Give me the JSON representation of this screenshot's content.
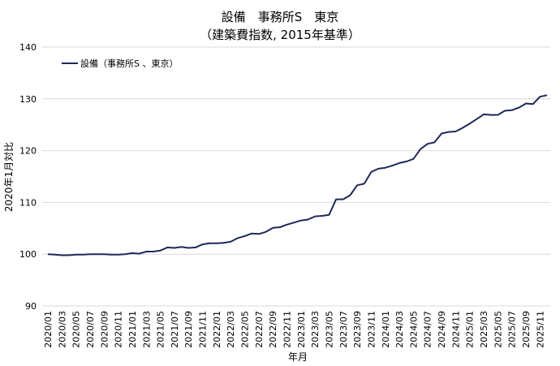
{
  "chart_data": {
    "type": "line",
    "title": "設備　事務所S　東京",
    "subtitle": "（建築費指数, 2015年基準）",
    "xlabel": "年月",
    "ylabel": "2020年1月対比",
    "ylim": [
      90,
      140
    ],
    "yticks": [
      90,
      100,
      110,
      120,
      130,
      140
    ],
    "grid": true,
    "legend_position": "top-left",
    "line_color": "#1f2858",
    "series": [
      {
        "name": "設備（事務所S 、東京）",
        "x": [
          "2020/01",
          "2020/02",
          "2020/03",
          "2020/04",
          "2020/05",
          "2020/06",
          "2020/07",
          "2020/08",
          "2020/09",
          "2020/10",
          "2020/11",
          "2020/12",
          "2021/01",
          "2021/02",
          "2021/03",
          "2021/04",
          "2021/05",
          "2021/06",
          "2021/07",
          "2021/08",
          "2021/09",
          "2021/10",
          "2021/11",
          "2021/12",
          "2022/01",
          "2022/02",
          "2022/03",
          "2022/04",
          "2022/05",
          "2022/06",
          "2022/07",
          "2022/08",
          "2022/09",
          "2022/10",
          "2022/11",
          "2022/12",
          "2023/01",
          "2023/02",
          "2023/03",
          "2023/04",
          "2023/05",
          "2023/06",
          "2023/07",
          "2023/08",
          "2023/09",
          "2023/10",
          "2023/11",
          "2023/12",
          "2024/01",
          "2024/02",
          "2024/03",
          "2024/04",
          "2024/05",
          "2024/06",
          "2024/07",
          "2024/08",
          "2024/09",
          "2024/10",
          "2024/11",
          "2024/12",
          "2025/01",
          "2025/02",
          "2025/03",
          "2025/04",
          "2025/05",
          "2025/06",
          "2025/07",
          "2025/08",
          "2025/09",
          "2025/10",
          "2025/11",
          "2025/12"
        ],
        "values": [
          100.0,
          99.9,
          99.8,
          99.8,
          99.9,
          99.9,
          100.0,
          100.0,
          100.0,
          99.9,
          99.9,
          100.0,
          100.2,
          100.1,
          100.5,
          100.5,
          100.7,
          101.3,
          101.2,
          101.4,
          101.2,
          101.3,
          101.9,
          102.1,
          102.1,
          102.2,
          102.4,
          103.1,
          103.5,
          104.0,
          103.9,
          104.3,
          105.1,
          105.2,
          105.7,
          106.1,
          106.5,
          106.7,
          107.3,
          107.4,
          107.6,
          110.6,
          110.6,
          111.4,
          113.3,
          113.6,
          115.9,
          116.5,
          116.7,
          117.1,
          117.6,
          117.9,
          118.4,
          120.3,
          121.3,
          121.6,
          123.3,
          123.6,
          123.7,
          124.4,
          125.2,
          126.1,
          127.0,
          126.9,
          126.9,
          127.7,
          127.8,
          128.3,
          129.1,
          129.0,
          130.4,
          130.7
        ]
      }
    ],
    "xtick_labels": [
      "2020/01",
      "2020/03",
      "2020/05",
      "2020/07",
      "2020/09",
      "2020/11",
      "2021/01",
      "2021/03",
      "2021/05",
      "2021/07",
      "2021/09",
      "2021/11",
      "2022/01",
      "2022/03",
      "2022/05",
      "2022/07",
      "2022/09",
      "2022/11",
      "2023/01",
      "2023/03",
      "2023/05",
      "2023/07",
      "2023/09",
      "2023/11",
      "2024/01",
      "2024/03",
      "2024/05",
      "2024/07",
      "2024/09",
      "2024/11",
      "2025/01",
      "2025/03",
      "2025/05",
      "2025/07",
      "2025/09",
      "2025/11"
    ]
  }
}
